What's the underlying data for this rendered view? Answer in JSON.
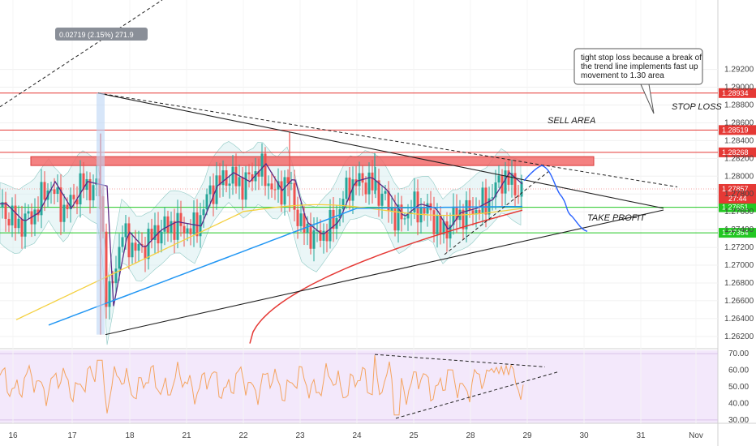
{
  "chart_data": {
    "type": "candlestick",
    "main_pane": {
      "ylim": [
        1.2608,
        1.2998
      ],
      "y_ticks": [
        "1.29200",
        "1.29000",
        "1.28800",
        "1.28600",
        "1.28400",
        "1.28200",
        "1.28000",
        "1.27800",
        "1.27600",
        "1.27400",
        "1.27200",
        "1.27000",
        "1.26800",
        "1.26600",
        "1.26400",
        "1.26200"
      ],
      "price_levels": [
        {
          "value": 1.28934,
          "label": "1.28934",
          "color": "#e53935"
        },
        {
          "value": 1.28519,
          "label": "1.28519",
          "color": "#e53935"
        },
        {
          "value": 1.28268,
          "label": "1.28268",
          "color": "#e53935"
        },
        {
          "value": 1.27651,
          "label": "1.27651",
          "color": "#22c722"
        },
        {
          "value": 1.27364,
          "label": "1.27364",
          "color": "#22c722"
        }
      ],
      "current_price": {
        "value": 1.27857,
        "label": "1.27857",
        "countdown": "27:44",
        "color": "#e53935"
      },
      "range_annotation": "0.02719 (2.15%) 271.9",
      "sell_area": {
        "label": "SELL AREA",
        "from": 1.2812,
        "to": 1.2822
      },
      "stop_loss_label": "STOP LOSS",
      "take_profit_label": "TAKE PROFIT",
      "note": [
        "tight stop loss because a break of",
        "the trend line implements fast up",
        "movement to 1.30 area"
      ]
    },
    "rsi_pane": {
      "ylim": [
        28,
        72
      ],
      "y_ticks": [
        "70.00",
        "60.00",
        "50.00",
        "40.00",
        "30.00"
      ],
      "band": [
        30,
        70
      ]
    },
    "x_ticks": [
      "16",
      "17",
      "18",
      "21",
      "22",
      "23",
      "24",
      "25",
      "28",
      "29",
      "30",
      "31",
      "Nov"
    ],
    "colors": {
      "up": "#26a69a",
      "down": "#ef5350",
      "bollinger_fill": "#d9eef0",
      "ema_fast": "#5b2a86",
      "ma_yellow": "#f4d03f",
      "ma_blue": "#2196f3",
      "ma_red": "#e53935",
      "rsi": "#f4a460",
      "rsi_bg": "#f3e8fb",
      "projection": "#2962ff"
    }
  }
}
